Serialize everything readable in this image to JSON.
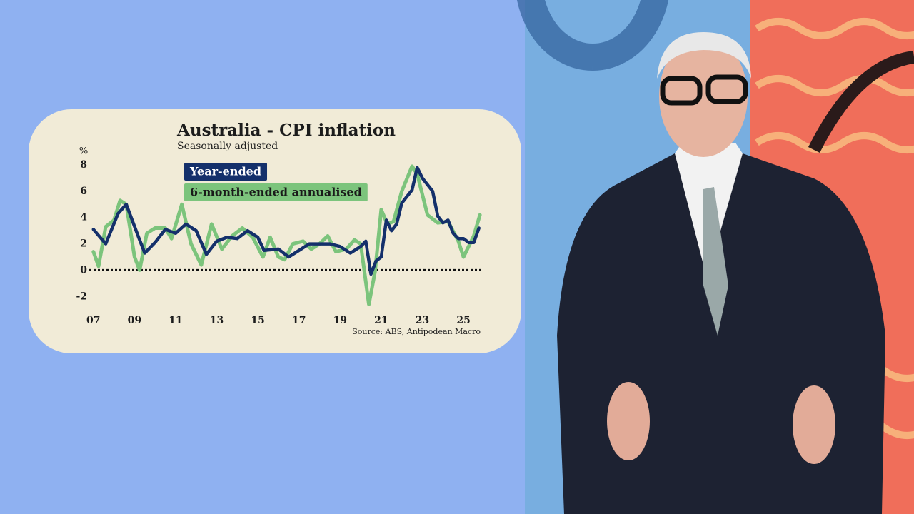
{
  "chart_data": {
    "type": "line",
    "title": "Australia - CPI inflation",
    "subtitle": "Seasonally adjusted",
    "y_label": "%",
    "source": "Source: ABS, Antipodean Macro",
    "xlim": [
      2006.8,
      2025.9
    ],
    "xticks": [
      {
        "value": 2007,
        "label": "07"
      },
      {
        "value": 2009,
        "label": "09"
      },
      {
        "value": 2011,
        "label": "11"
      },
      {
        "value": 2013,
        "label": "13"
      },
      {
        "value": 2015,
        "label": "15"
      },
      {
        "value": 2017,
        "label": "17"
      },
      {
        "value": 2019,
        "label": "19"
      },
      {
        "value": 2021,
        "label": "21"
      },
      {
        "value": 2023,
        "label": "23"
      },
      {
        "value": 2025,
        "label": "25"
      }
    ],
    "ylim": [
      -2.8,
      8.6
    ],
    "yticks": [
      -2,
      0,
      2,
      4,
      6,
      8
    ],
    "zero_line": true,
    "series": [
      {
        "name": "6-month-ended annualised",
        "color": "#7cc47c",
        "x": [
          2007.0,
          2007.25,
          2007.6,
          2008.0,
          2008.3,
          2008.6,
          2009.0,
          2009.25,
          2009.6,
          2010.0,
          2010.5,
          2010.8,
          2011.3,
          2011.75,
          2012.25,
          2012.75,
          2013.25,
          2013.75,
          2014.25,
          2014.75,
          2015.25,
          2015.6,
          2016.0,
          2016.3,
          2016.7,
          2017.2,
          2017.6,
          2018.0,
          2018.4,
          2018.8,
          2019.3,
          2019.7,
          2020.0,
          2020.4,
          2020.7,
          2021.0,
          2021.3,
          2021.6,
          2022.0,
          2022.5,
          2022.75,
          2023.25,
          2023.75,
          2024.25,
          2024.75,
          2025.0,
          2025.5,
          2025.8
        ],
        "values": [
          1.4,
          0.3,
          3.3,
          3.8,
          5.3,
          5.0,
          1.0,
          0.0,
          2.8,
          3.2,
          3.2,
          2.4,
          5.0,
          2.0,
          0.4,
          3.5,
          1.6,
          2.6,
          3.2,
          2.5,
          1.0,
          2.5,
          1.0,
          0.8,
          2.0,
          2.2,
          1.6,
          2.0,
          2.6,
          1.4,
          1.6,
          2.3,
          2.0,
          -2.6,
          -0.1,
          4.6,
          3.5,
          3.7,
          6.0,
          7.9,
          7.3,
          4.2,
          3.6,
          3.7,
          2.2,
          1.0,
          2.6,
          4.2
        ]
      },
      {
        "name": "Year-ended",
        "color": "#14306b",
        "x": [
          2007.0,
          2007.6,
          2008.2,
          2008.6,
          2009.2,
          2009.5,
          2010.0,
          2010.5,
          2011.0,
          2011.5,
          2012.0,
          2012.5,
          2013.0,
          2013.5,
          2014.0,
          2014.5,
          2015.0,
          2015.3,
          2016.0,
          2016.5,
          2017.0,
          2017.5,
          2018.0,
          2018.5,
          2019.0,
          2019.5,
          2020.0,
          2020.25,
          2020.5,
          2020.75,
          2021.0,
          2021.25,
          2021.5,
          2021.75,
          2022.0,
          2022.5,
          2022.75,
          2023.0,
          2023.5,
          2023.75,
          2024.0,
          2024.25,
          2024.5,
          2024.75,
          2025.0,
          2025.25,
          2025.5,
          2025.75
        ],
        "values": [
          3.1,
          2.0,
          4.3,
          5.0,
          2.5,
          1.3,
          2.1,
          3.1,
          2.8,
          3.5,
          3.0,
          1.2,
          2.2,
          2.5,
          2.4,
          3.0,
          2.5,
          1.5,
          1.6,
          1.0,
          1.5,
          2.0,
          2.0,
          2.0,
          1.8,
          1.3,
          1.8,
          2.2,
          -0.3,
          0.7,
          1.0,
          3.8,
          3.0,
          3.5,
          5.1,
          6.1,
          7.8,
          7.0,
          6.0,
          4.1,
          3.6,
          3.8,
          2.8,
          2.4,
          2.4,
          2.1,
          2.1,
          3.2
        ]
      }
    ]
  }
}
